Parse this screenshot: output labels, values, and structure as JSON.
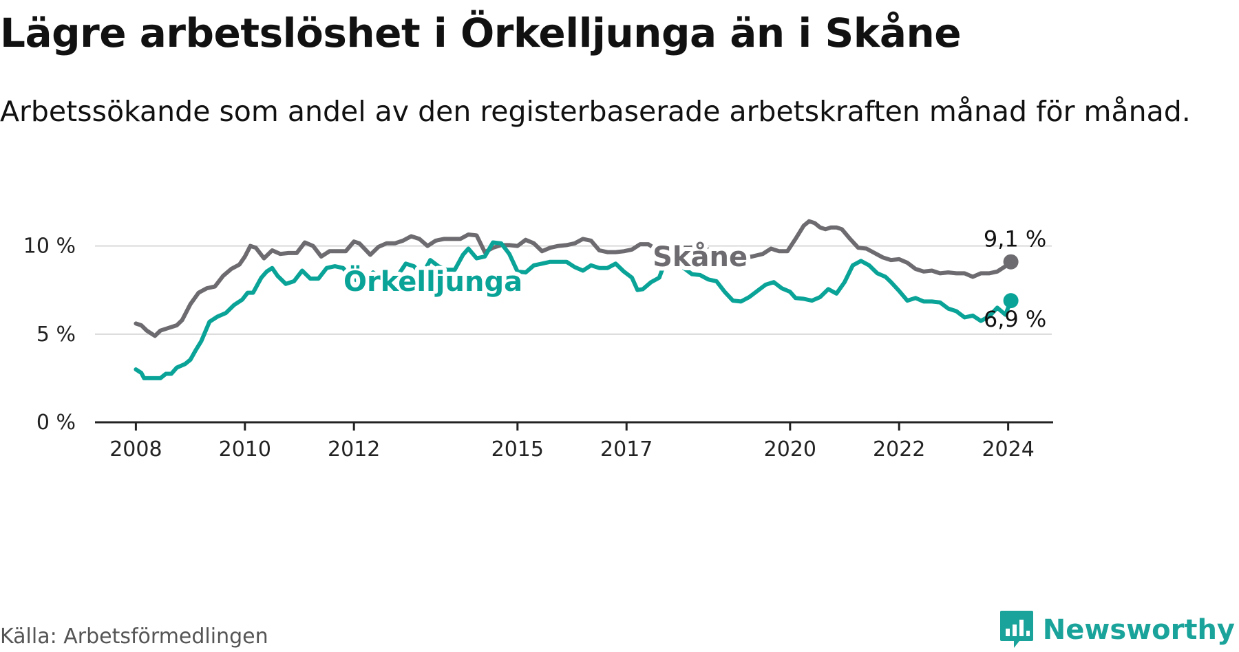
{
  "title": "Lägre arbetslöshet i Örkelljunga än i Skåne",
  "subtitle": "Arbetssökande som andel av den registerbaserade arbetskraften månad för månad.",
  "source": "Källa: Arbetsförmedlingen",
  "brand": "Newsworthy",
  "colors": {
    "skane": "#6d6b6f",
    "orkelljunga": "#0aa398",
    "grid": "#d9d9d9",
    "axis": "#222222",
    "brand": "#1aa39a"
  },
  "icons": {
    "brand_logo": "bar-chart-speech-bubble-icon"
  },
  "chart_data": {
    "type": "line",
    "title": "Lägre arbetslöshet i Örkelljunga än i Skåne",
    "xlabel": "",
    "ylabel": "",
    "ylim": [
      0,
      11
    ],
    "xlim": [
      2007.25,
      2024.8
    ],
    "yticks": [
      0,
      5,
      10
    ],
    "ytick_labels": [
      "0 %",
      "5 %",
      "10 %"
    ],
    "xticks": [
      2008,
      2010,
      2012,
      2015,
      2017,
      2020,
      2022,
      2024
    ],
    "xtick_labels": [
      "2008",
      "2010",
      "2012",
      "2015",
      "2017",
      "2020",
      "2022",
      "2024"
    ],
    "grid": true,
    "series": [
      {
        "name": "Skåne",
        "label": "Skåne",
        "end_label": "9,1 %",
        "x": [
          2008.0,
          2008.1,
          2008.2,
          2008.35,
          2008.45,
          2008.6,
          2008.75,
          2008.85,
          2009.0,
          2009.15,
          2009.3,
          2009.45,
          2009.6,
          2009.75,
          2009.9,
          2010.0,
          2010.1,
          2010.2,
          2010.35,
          2010.5,
          2010.65,
          2010.8,
          2010.95,
          2011.1,
          2011.25,
          2011.4,
          2011.55,
          2011.7,
          2011.85,
          2012.0,
          2012.1,
          2012.3,
          2012.45,
          2012.6,
          2012.75,
          2012.9,
          2013.05,
          2013.2,
          2013.35,
          2013.5,
          2013.65,
          2013.8,
          2013.95,
          2014.1,
          2014.25,
          2014.4,
          2014.55,
          2014.7,
          2014.85,
          2015.0,
          2015.15,
          2015.3,
          2015.45,
          2015.6,
          2015.75,
          2015.9,
          2016.05,
          2016.2,
          2016.35,
          2016.5,
          2016.65,
          2016.8,
          2016.95,
          2017.1,
          2017.25,
          2017.4,
          2017.55,
          2017.7,
          2017.85,
          2018.0,
          2018.15,
          2018.3,
          2018.5,
          2018.7,
          2018.9,
          2019.1,
          2019.3,
          2019.5,
          2019.65,
          2019.8,
          2019.95,
          2020.1,
          2020.25,
          2020.35,
          2020.45,
          2020.55,
          2020.65,
          2020.75,
          2020.85,
          2020.95,
          2021.1,
          2021.25,
          2021.4,
          2021.55,
          2021.7,
          2021.85,
          2022.0,
          2022.15,
          2022.3,
          2022.45,
          2022.6,
          2022.75,
          2022.9,
          2023.05,
          2023.2,
          2023.35,
          2023.5,
          2023.65,
          2023.8,
          2023.95,
          2024.05
        ],
        "y": [
          5.6,
          5.5,
          5.2,
          4.9,
          5.2,
          5.35,
          5.5,
          5.8,
          6.7,
          7.35,
          7.6,
          7.7,
          8.3,
          8.7,
          8.95,
          9.4,
          10.0,
          9.9,
          9.3,
          9.75,
          9.55,
          9.6,
          9.6,
          10.2,
          10.0,
          9.4,
          9.7,
          9.7,
          9.7,
          10.25,
          10.15,
          9.5,
          9.95,
          10.15,
          10.15,
          10.3,
          10.55,
          10.4,
          10.0,
          10.3,
          10.4,
          10.4,
          10.4,
          10.65,
          10.6,
          9.65,
          9.9,
          10.05,
          10.05,
          10.0,
          10.35,
          10.15,
          9.7,
          9.9,
          10.0,
          10.05,
          10.15,
          10.4,
          10.3,
          9.75,
          9.65,
          9.65,
          9.7,
          9.8,
          10.1,
          10.1,
          9.8,
          9.65,
          9.75,
          9.9,
          9.9,
          9.95,
          9.8,
          9.65,
          9.4,
          9.3,
          9.4,
          9.55,
          9.85,
          9.7,
          9.7,
          10.4,
          11.15,
          11.4,
          11.3,
          11.05,
          10.95,
          11.05,
          11.05,
          10.95,
          10.4,
          9.9,
          9.85,
          9.6,
          9.35,
          9.2,
          9.25,
          9.05,
          8.7,
          8.55,
          8.6,
          8.45,
          8.5,
          8.45,
          8.45,
          8.25,
          8.45,
          8.45,
          8.55,
          8.85,
          9.1
        ]
      },
      {
        "name": "Örkelljunga",
        "label": "Örkelljunga",
        "end_label": "6,9 %",
        "x": [
          2008.0,
          2008.1,
          2008.15,
          2008.3,
          2008.45,
          2008.55,
          2008.65,
          2008.75,
          2008.9,
          2009.0,
          2009.1,
          2009.2,
          2009.35,
          2009.5,
          2009.65,
          2009.8,
          2009.95,
          2010.05,
          2010.15,
          2010.3,
          2010.4,
          2010.5,
          2010.6,
          2010.75,
          2010.9,
          2011.05,
          2011.2,
          2011.35,
          2011.5,
          2011.65,
          2011.8,
          2011.95,
          2012.05,
          2012.2,
          2012.35,
          2012.5,
          2012.65,
          2012.8,
          2012.95,
          2013.1,
          2013.25,
          2013.4,
          2013.55,
          2013.7,
          2013.85,
          2014.0,
          2014.1,
          2014.25,
          2014.4,
          2014.55,
          2014.7,
          2014.85,
          2015.0,
          2015.15,
          2015.3,
          2015.45,
          2015.6,
          2015.75,
          2015.9,
          2016.05,
          2016.2,
          2016.35,
          2016.5,
          2016.65,
          2016.8,
          2016.95,
          2017.1,
          2017.2,
          2017.3,
          2017.45,
          2017.6,
          2017.75,
          2017.9,
          2018.05,
          2018.2,
          2018.35,
          2018.5,
          2018.65,
          2018.8,
          2018.95,
          2019.1,
          2019.25,
          2019.4,
          2019.55,
          2019.7,
          2019.85,
          2020.0,
          2020.1,
          2020.25,
          2020.4,
          2020.55,
          2020.7,
          2020.85,
          2021.0,
          2021.15,
          2021.3,
          2021.45,
          2021.6,
          2021.75,
          2021.85,
          2022.0,
          2022.15,
          2022.3,
          2022.45,
          2022.6,
          2022.75,
          2022.9,
          2023.05,
          2023.2,
          2023.35,
          2023.5,
          2023.65,
          2023.8,
          2023.95,
          2024.05
        ],
        "y": [
          3.0,
          2.8,
          2.5,
          2.5,
          2.5,
          2.75,
          2.75,
          3.1,
          3.3,
          3.55,
          4.1,
          4.6,
          5.7,
          6.0,
          6.2,
          6.65,
          6.95,
          7.35,
          7.35,
          8.2,
          8.55,
          8.75,
          8.3,
          7.85,
          8.0,
          8.6,
          8.15,
          8.15,
          8.75,
          8.85,
          8.75,
          8.2,
          8.05,
          8.05,
          8.5,
          8.15,
          7.95,
          8.3,
          9.0,
          8.85,
          8.35,
          9.2,
          8.85,
          8.65,
          8.65,
          9.5,
          9.85,
          9.3,
          9.4,
          10.2,
          10.15,
          9.55,
          8.55,
          8.5,
          8.9,
          9.0,
          9.1,
          9.1,
          9.1,
          8.8,
          8.6,
          8.9,
          8.75,
          8.75,
          9.0,
          8.55,
          8.2,
          7.5,
          7.55,
          7.95,
          8.2,
          9.45,
          9.4,
          8.75,
          8.4,
          8.35,
          8.1,
          8.0,
          7.4,
          6.9,
          6.85,
          7.1,
          7.45,
          7.8,
          7.95,
          7.6,
          7.4,
          7.05,
          7.0,
          6.9,
          7.1,
          7.55,
          7.3,
          7.95,
          8.9,
          9.15,
          8.9,
          8.45,
          8.25,
          7.95,
          7.45,
          6.9,
          7.05,
          6.85,
          6.85,
          6.8,
          6.45,
          6.3,
          5.95,
          6.05,
          5.75,
          6.0,
          6.5,
          6.1,
          6.9
        ]
      }
    ]
  }
}
